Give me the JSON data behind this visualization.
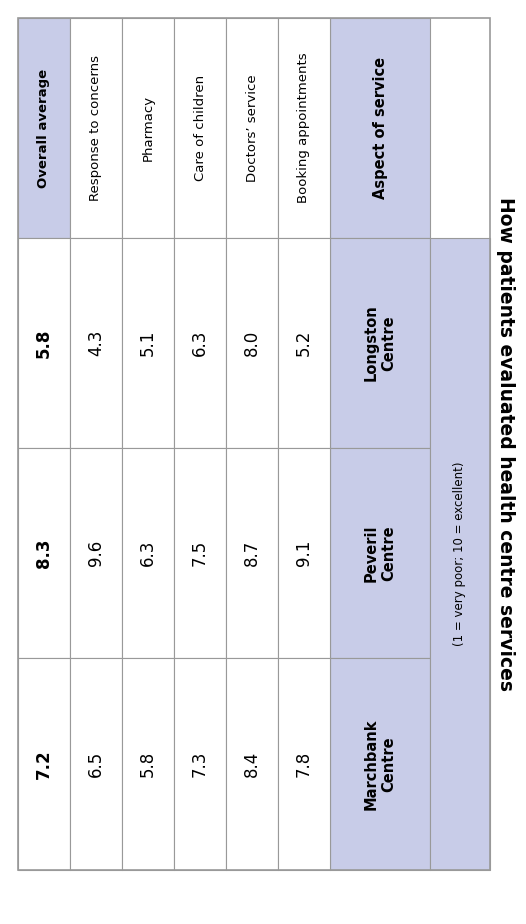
{
  "title": "How patients evaluated health centre services",
  "subtitle": "(1 = very poor; 10 = excellent)",
  "aspect_header": "Aspect of service",
  "centres": [
    "Longston\nCentre",
    "Peveril\nCentre",
    "Marchbank\nCentre"
  ],
  "rows": [
    {
      "aspect": "Booking appointments",
      "values": [
        "5.2",
        "9.1",
        "7.8"
      ]
    },
    {
      "aspect": "Doctors’ service",
      "values": [
        "8.0",
        "8.7",
        "8.4"
      ]
    },
    {
      "aspect": "Care of children",
      "values": [
        "6.3",
        "7.5",
        "7.3"
      ]
    },
    {
      "aspect": "Pharmacy",
      "values": [
        "5.1",
        "6.3",
        "5.8"
      ]
    },
    {
      "aspect": "Response to concerns",
      "values": [
        "4.3",
        "9.6",
        "6.5"
      ]
    },
    {
      "aspect": "Overall average",
      "values": [
        "5.8",
        "8.3",
        "7.2"
      ]
    }
  ],
  "header_bg": "#c8cce8",
  "white": "#ffffff",
  "border_color": "#999999",
  "title_fontsize": 13.5,
  "header_fontsize": 10.5,
  "data_fontsize": 12,
  "label_fontsize": 9.5
}
